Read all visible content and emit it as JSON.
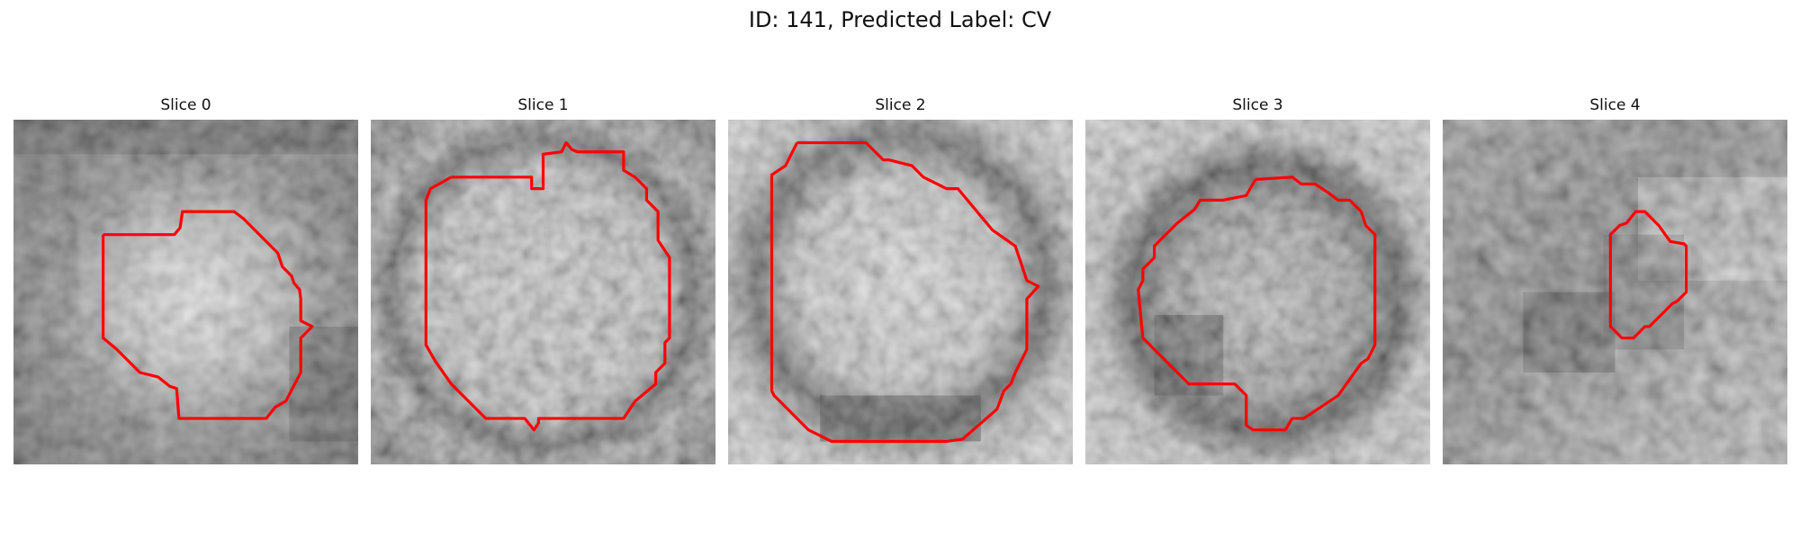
{
  "figure": {
    "title": "ID: 141, Predicted Label: CV"
  },
  "slices": [
    {
      "label": "Slice 0"
    },
    {
      "label": "Slice 1"
    },
    {
      "label": "Slice 2"
    },
    {
      "label": "Slice 3"
    },
    {
      "label": "Slice 4"
    }
  ],
  "colors": {
    "contour": "#ff0000",
    "background": "#ffffff"
  }
}
